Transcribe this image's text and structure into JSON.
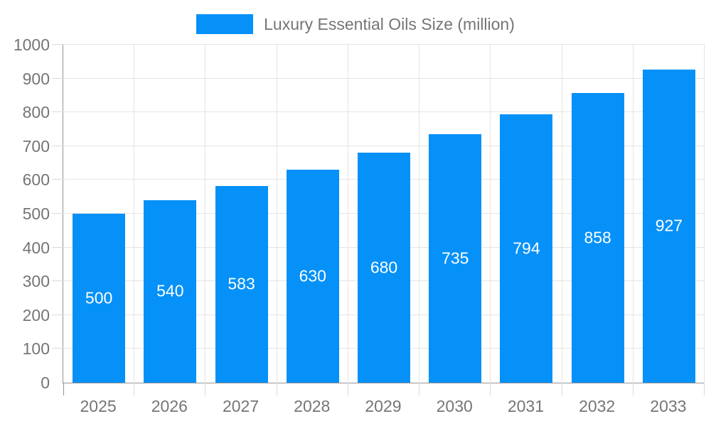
{
  "legend": {
    "label": "Luxury Essential Oils Size (million)"
  },
  "chart_data": {
    "type": "bar",
    "title": "Luxury Essential Oils Size (million)",
    "series_name": "Luxury Essential Oils Size (million)",
    "categories": [
      "2025",
      "2026",
      "2027",
      "2028",
      "2029",
      "2030",
      "2031",
      "2032",
      "2033"
    ],
    "values": [
      500,
      540,
      583,
      630,
      680,
      735,
      794,
      858,
      927
    ],
    "xlabel": "",
    "ylabel": "",
    "ylim": [
      0,
      1000
    ],
    "y_tick_step": 100,
    "y_ticks": [
      0,
      100,
      200,
      300,
      400,
      500,
      600,
      700,
      800,
      900,
      1000
    ],
    "grid": true,
    "legend_position": "top-center",
    "value_labels": "inside-center",
    "bar_color": "#0591f8",
    "value_label_color": "#ffffff",
    "gridline_color": "#e4e4e4",
    "tick_color": "#dadada",
    "axis_line_color": "#949494",
    "tick_label_color": "#757575"
  }
}
